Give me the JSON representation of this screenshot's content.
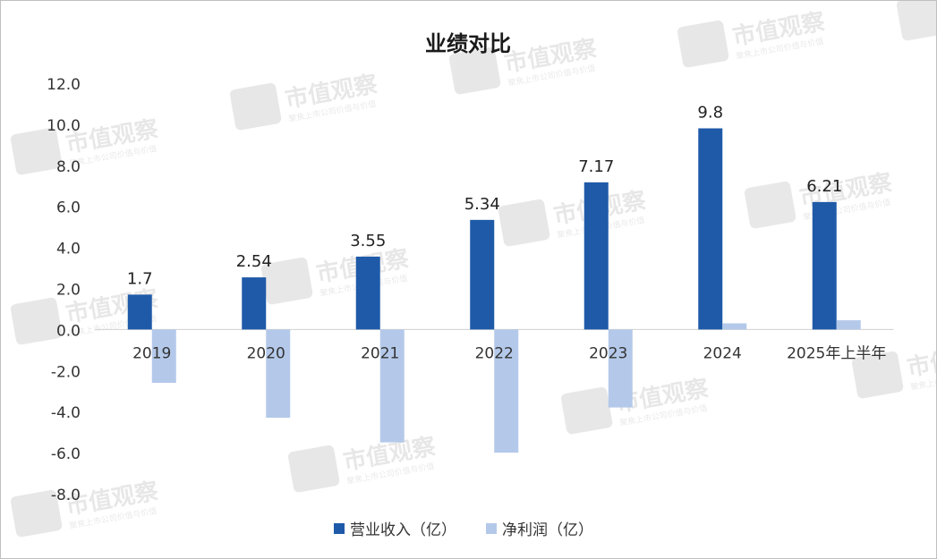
{
  "chart_data": {
    "type": "bar",
    "title": "业绩对比",
    "categories": [
      "2019",
      "2020",
      "2021",
      "2022",
      "2023",
      "2024",
      "2025年上半年"
    ],
    "series": [
      {
        "name": "营业收入（亿）",
        "color": "#1f5aa8",
        "values": [
          1.7,
          2.54,
          3.55,
          5.34,
          7.17,
          9.8,
          6.21
        ],
        "data_labels": [
          "1.7",
          "2.54",
          "3.55",
          "5.34",
          "7.17",
          "9.8",
          "6.21"
        ]
      },
      {
        "name": "净利润（亿）",
        "color": "#b4c9ea",
        "values": [
          -2.6,
          -4.3,
          -5.5,
          -6.0,
          -3.8,
          0.3,
          0.45
        ]
      }
    ],
    "y_ticks": [
      "12.0",
      "10.0",
      "8.0",
      "6.0",
      "4.0",
      "2.0",
      "0.0",
      "-2.0",
      "-4.0",
      "-6.0",
      "-8.0"
    ],
    "ylim": [
      -8,
      12
    ],
    "grid": false,
    "legend_position": "bottom"
  },
  "watermark": {
    "brand": "市值观察",
    "tagline": "聚焦上市公司价值与价值"
  }
}
